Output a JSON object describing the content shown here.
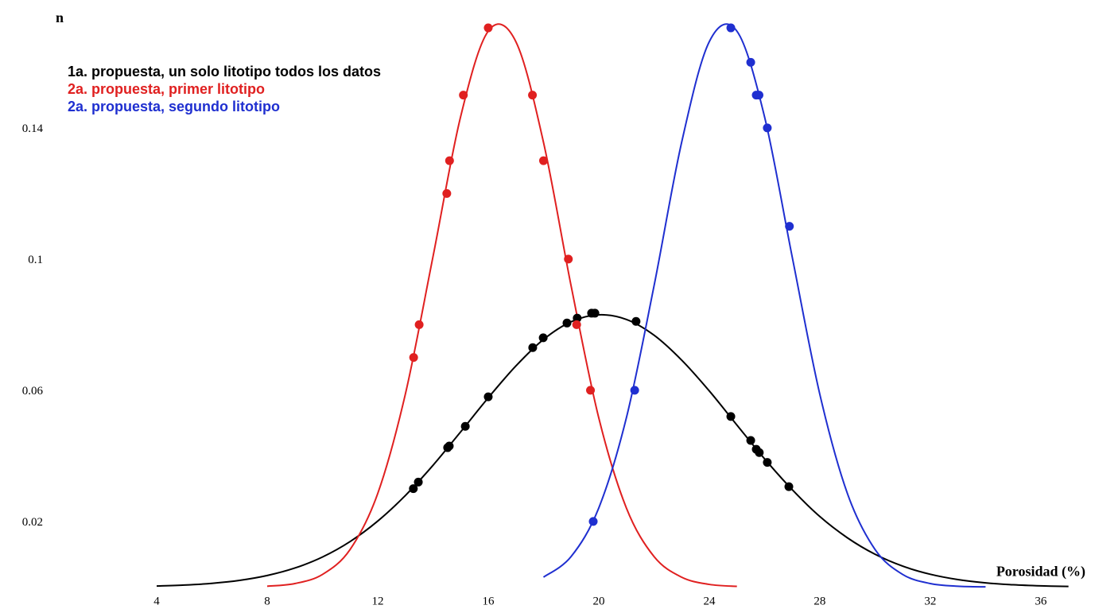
{
  "chart_data": {
    "type": "scatter",
    "x_label": "Porosidad (%)",
    "y_label": "n",
    "xlim": [
      -1.67,
      37.96
    ],
    "ylim": [
      -0.0067,
      0.179
    ],
    "xticks": [
      4,
      8,
      12,
      16,
      20,
      24,
      28,
      32,
      36
    ],
    "yticks": [
      0.02,
      0.06,
      0.1,
      0.14
    ],
    "xgrid": [
      2,
      4,
      6,
      8,
      10,
      12,
      14,
      16,
      18,
      20,
      22,
      24,
      26,
      28,
      30,
      32,
      34,
      36
    ],
    "ygrid": [
      0.02,
      0.04,
      0.06,
      0.08,
      0.1,
      0.12,
      0.14,
      0.16
    ],
    "grid": true,
    "legend": "top-left",
    "series": [
      {
        "name": "1a. propuesta, un solo litotipo todos los datos",
        "color": "#000000",
        "curve": {
          "x": [
            4,
            5,
            6,
            7,
            8,
            9,
            10,
            11,
            12,
            13,
            14,
            15,
            16,
            17,
            18,
            19,
            20,
            21,
            22,
            23,
            24,
            25,
            26,
            27,
            28,
            29,
            30,
            31,
            32,
            33,
            34,
            35,
            36,
            37
          ],
          "values": [
            0.00031,
            0.0006,
            0.00113,
            0.00203,
            0.00351,
            0.00579,
            0.00915,
            0.01386,
            0.0201,
            0.0279,
            0.0371,
            0.0473,
            0.0577,
            0.0674,
            0.0755,
            0.0809,
            0.083,
            0.0816,
            0.0768,
            0.0692,
            0.0598,
            0.0494,
            0.0391,
            0.0297,
            0.0215,
            0.015,
            0.00999,
            0.00637,
            0.00389,
            0.00227,
            0.00127,
            0.00068,
            0.00035,
            0.00017
          ]
        },
        "points": {
          "x": [
            13.29,
            13.47,
            14.53,
            14.59,
            15.17,
            16.0,
            17.61,
            17.99,
            18.85,
            19.22,
            19.74,
            19.86,
            21.35,
            24.78,
            25.5,
            25.7,
            25.81,
            26.1,
            26.88
          ],
          "values": [
            0.03,
            0.032,
            0.0425,
            0.043,
            0.049,
            0.058,
            0.073,
            0.076,
            0.0805,
            0.082,
            0.0835,
            0.0835,
            0.081,
            0.052,
            0.0447,
            0.042,
            0.041,
            0.038,
            0.0306
          ]
        }
      },
      {
        "name": "2a. propuesta, primer litotipo",
        "color": "#e02020",
        "curve": {
          "x": [
            8,
            9,
            10,
            11,
            12,
            13,
            14,
            15,
            16,
            17,
            18,
            19,
            20,
            21,
            22,
            23,
            24,
            25
          ],
          "values": [
            0.00024,
            0.00106,
            0.00383,
            0.01145,
            0.0285,
            0.0588,
            0.1007,
            0.1434,
            0.1695,
            0.1663,
            0.1356,
            0.0918,
            0.0516,
            0.0241,
            0.0093,
            0.003,
            0.0008,
            0.0002
          ]
        },
        "points": {
          "x": [
            13.3,
            13.5,
            14.5,
            14.6,
            15.1,
            16.0,
            17.6,
            18.0,
            18.9,
            19.2,
            19.7
          ],
          "values": [
            0.07,
            0.08,
            0.12,
            0.13,
            0.15,
            0.1705,
            0.15,
            0.13,
            0.1,
            0.08,
            0.06
          ]
        }
      },
      {
        "name": "2a. propuesta, segundo litotipo",
        "color": "#1f2fd0",
        "curve": {
          "x": [
            18,
            19,
            20,
            21,
            22,
            23,
            24,
            25,
            26,
            27,
            28,
            29,
            30,
            31,
            32,
            33,
            34
          ],
          "values": [
            0.003,
            0.0093,
            0.0241,
            0.0516,
            0.0918,
            0.1356,
            0.1663,
            0.1695,
            0.1434,
            0.1007,
            0.0588,
            0.0285,
            0.01145,
            0.00383,
            0.00106,
            0.00024,
            5e-05
          ]
        },
        "points": {
          "x": [
            19.8,
            21.3,
            24.78,
            25.5,
            25.7,
            25.8,
            26.1,
            26.9
          ],
          "values": [
            0.02,
            0.06,
            0.1705,
            0.16,
            0.15,
            0.15,
            0.14,
            0.11
          ]
        }
      }
    ]
  }
}
